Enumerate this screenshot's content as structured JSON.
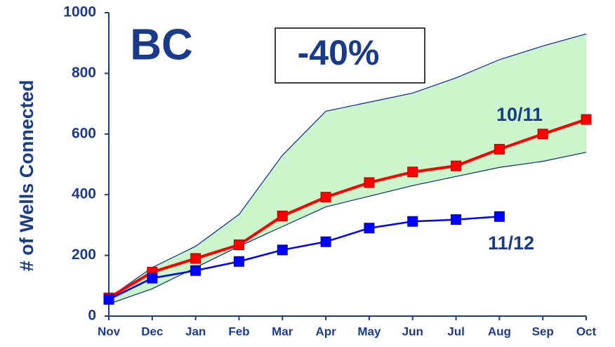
{
  "chart_data": {
    "type": "line",
    "y_label": "# of Wells Connected",
    "categories": [
      "Nov",
      "Dec",
      "Jan",
      "Feb",
      "Mar",
      "Apr",
      "May",
      "Jun",
      "Jul",
      "Aug",
      "Sep",
      "Oct"
    ],
    "ylim": [
      0,
      1000
    ],
    "yticks": [
      0,
      200,
      400,
      600,
      800,
      1000
    ],
    "band": {
      "color": "#ccf5cc",
      "edge_color": "#1a3a8c",
      "upper": [
        60,
        160,
        230,
        335,
        530,
        675,
        705,
        735,
        785,
        845,
        890,
        930
      ],
      "lower": [
        40,
        90,
        160,
        230,
        295,
        360,
        395,
        430,
        460,
        490,
        510,
        540
      ]
    },
    "series": [
      {
        "name": "10/11",
        "color": "#ff0000",
        "values": [
          60,
          145,
          190,
          235,
          330,
          392,
          440,
          475,
          495,
          550,
          600,
          648
        ]
      },
      {
        "name": "11/12",
        "color": "#0000ff",
        "values": [
          55,
          125,
          150,
          180,
          218,
          245,
          290,
          312,
          318,
          328,
          null,
          null
        ]
      }
    ],
    "annotations": [
      "BC",
      "-40%"
    ]
  }
}
